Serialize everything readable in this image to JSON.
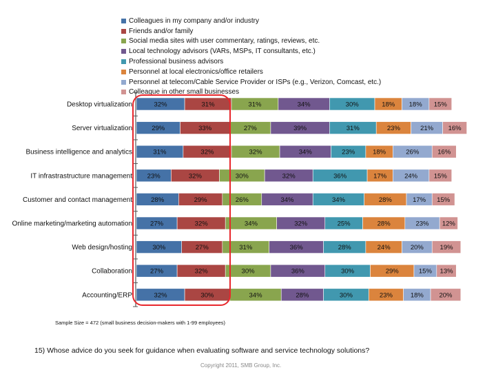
{
  "chart_data": {
    "type": "bar",
    "orientation": "horizontal",
    "stacked": true,
    "title": "",
    "xlabel": "",
    "ylabel": "",
    "grid": false,
    "legend_position": "top",
    "categories": [
      "Desktop virtualization",
      "Server virtualization",
      "Business intelligence and analytics",
      "IT infrastrastructure management",
      "Customer and contact management",
      "Online marketing/marketing automation",
      "Web design/hosting",
      "Collaboration",
      "Accounting/ERP"
    ],
    "series": [
      {
        "name": "Colleagues in my company and/or industry",
        "color": "#4572A7",
        "values": [
          32,
          29,
          31,
          23,
          28,
          27,
          30,
          27,
          32
        ]
      },
      {
        "name": "Friends and/or family",
        "color": "#AA4643",
        "values": [
          31,
          33,
          32,
          32,
          29,
          32,
          27,
          32,
          30
        ]
      },
      {
        "name": "Social media sites with user commentary, ratings, reviews, etc.",
        "color": "#89A54E",
        "values": [
          31,
          27,
          32,
          30,
          26,
          34,
          31,
          30,
          34
        ]
      },
      {
        "name": "Local technology advisors (VARs, MSPs, IT consultants, etc.)",
        "color": "#71588F",
        "values": [
          34,
          39,
          34,
          32,
          34,
          32,
          36,
          36,
          28
        ]
      },
      {
        "name": "Professional business advisors",
        "color": "#4198AF",
        "values": [
          30,
          31,
          23,
          36,
          34,
          25,
          28,
          30,
          30
        ]
      },
      {
        "name": "Personnel at local electronics/office retailers",
        "color": "#DB843D",
        "values": [
          18,
          23,
          18,
          17,
          28,
          28,
          24,
          29,
          23
        ]
      },
      {
        "name": "Personnel at telecom/Cable Service Provider or ISPs (e.g., Verizon, Comcast, etc.)",
        "color": "#93A9CF",
        "values": [
          18,
          21,
          26,
          24,
          17,
          23,
          20,
          15,
          18
        ]
      },
      {
        "name": "Colleague in other small businesses",
        "color": "#D19392",
        "values": [
          15,
          16,
          16,
          15,
          15,
          12,
          19,
          13,
          20
        ]
      }
    ],
    "value_format": "{v}%",
    "annotation": "red rounded rectangle highlighting first two series"
  },
  "footer": {
    "sample_size": "Sample Size = 472 (small business decision-makers with 1-99 employees)",
    "question": "15) Whose advice do you seek for guidance when evaluating software and service technology solutions?",
    "copyright": "Copyright 2011, SMB Group, Inc."
  },
  "colors": {
    "highlight": "#E8262B",
    "axis": "#555555"
  }
}
